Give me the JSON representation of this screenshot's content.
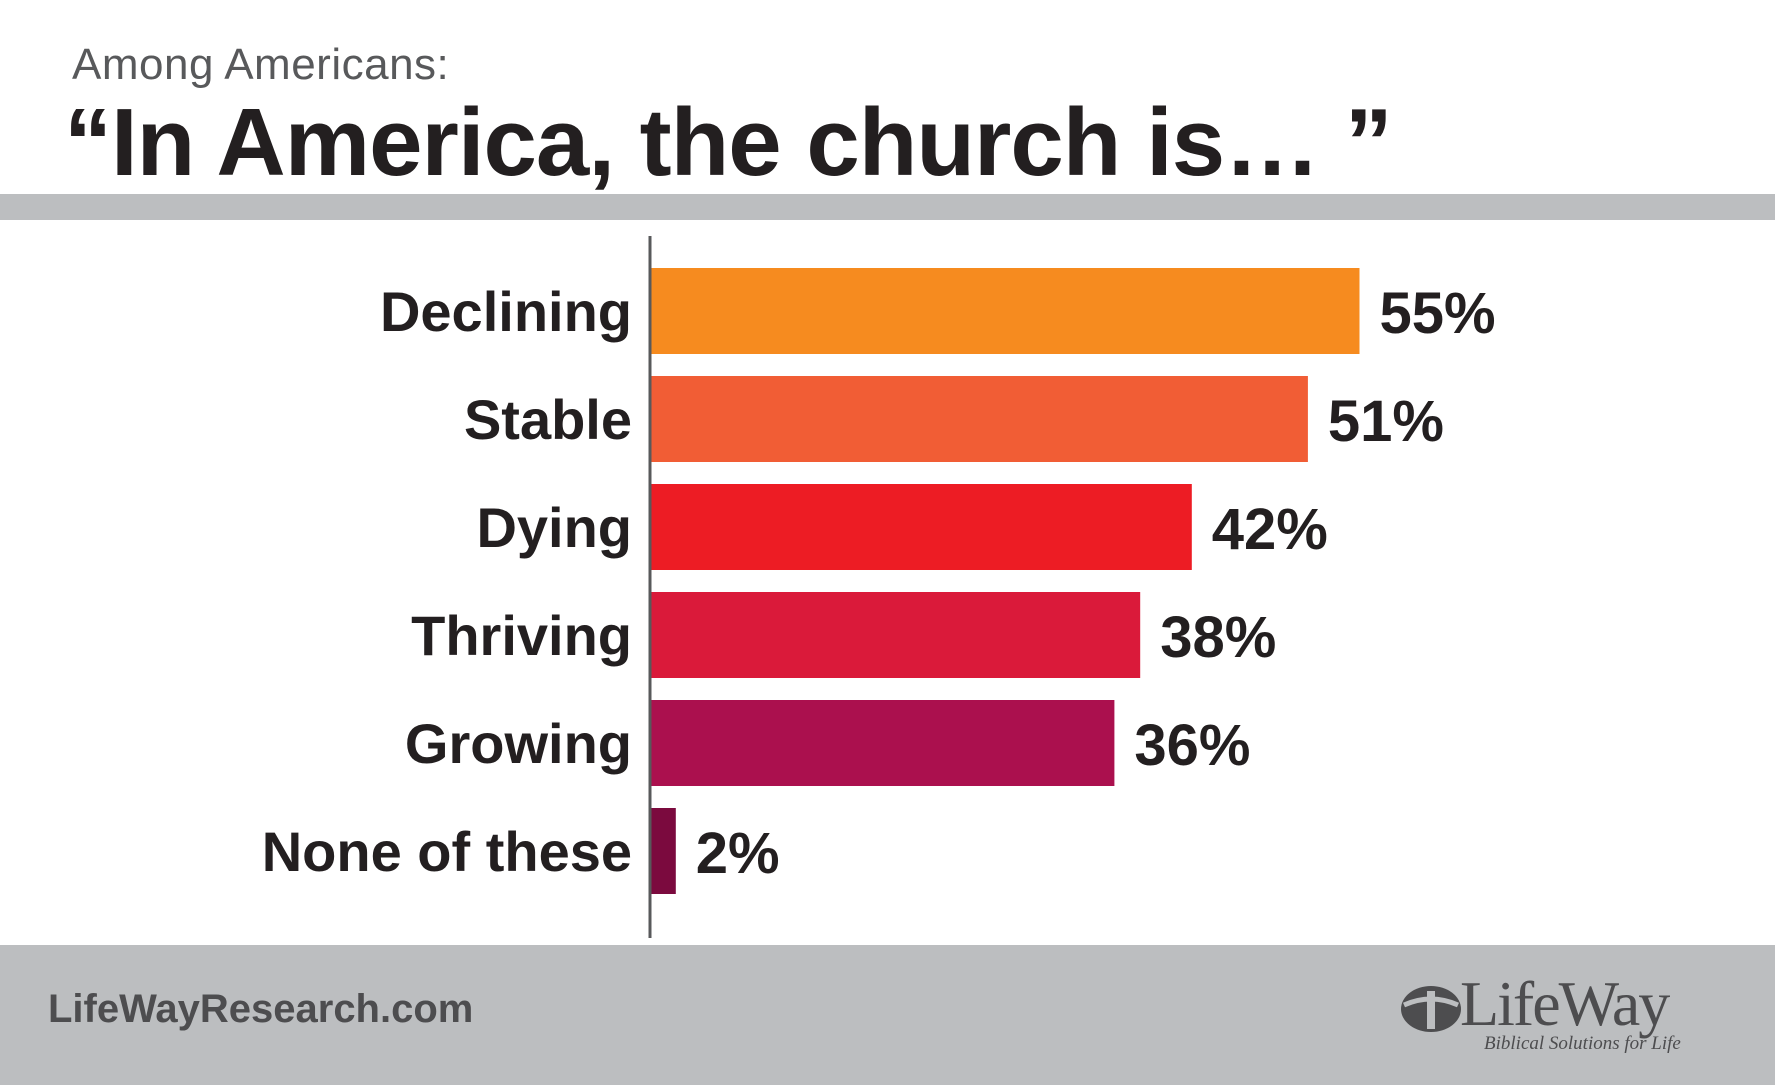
{
  "header": {
    "subtitle": "Among Americans:",
    "title": "“In America, the church is… ”"
  },
  "footer": {
    "url": "LifeWayResearch.com",
    "logo_word": "LifeWay",
    "logo_tagline": "Biblical Solutions for Life"
  },
  "colors": {
    "band": "#bcbec0",
    "text": "#231f20",
    "axis": "#58595b"
  },
  "chart_data": {
    "type": "bar",
    "orientation": "horizontal",
    "categories": [
      "Declining",
      "Stable",
      "Dying",
      "Thriving",
      "Growing",
      "None of these"
    ],
    "values": [
      55,
      51,
      42,
      38,
      36,
      2
    ],
    "value_labels": [
      "55%",
      "51%",
      "42%",
      "38%",
      "36%",
      "2%"
    ],
    "bar_colors": [
      "#f68b1f",
      "#f15d35",
      "#ed1c24",
      "#da1a3a",
      "#ab104e",
      "#7b0a3e"
    ],
    "unit": "%",
    "xlim": [
      0,
      55
    ],
    "grid": false,
    "legend": "none"
  }
}
